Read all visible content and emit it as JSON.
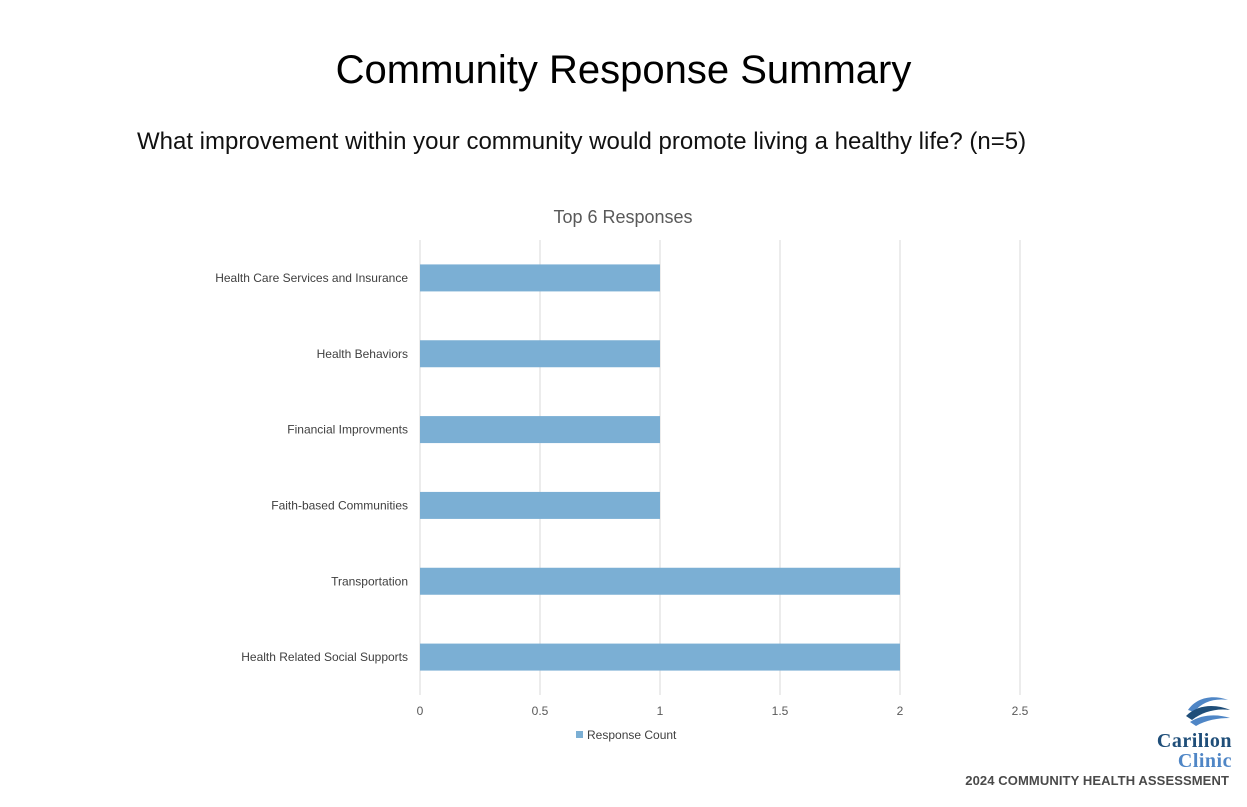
{
  "page": {
    "title": "Community Response Summary",
    "subtitle": "What improvement within your community would promote living a healthy life? (n=5)",
    "footer": "2024 COMMUNITY HEALTH ASSESSMENT",
    "logo": {
      "line1": "Carilion",
      "line2": "Clinic",
      "icon": "carilion-swoosh-icon"
    }
  },
  "colors": {
    "bar": "#7bafd4",
    "grid": "#d9d9d9"
  },
  "chart_data": {
    "type": "bar",
    "orientation": "horizontal",
    "title": "Top 6 Responses",
    "categories": [
      "Health Care Services and Insurance",
      "Health Behaviors",
      "Financial Improvments",
      "Faith-based Communities",
      "Transportation",
      "Health Related Social Supports"
    ],
    "series": [
      {
        "name": "Response Count",
        "values": [
          1,
          1,
          1,
          1,
          2,
          2
        ]
      }
    ],
    "xlim": [
      0,
      2.5
    ],
    "xticks": [
      "0",
      "0.5",
      "1",
      "1.5",
      "2",
      "2.5"
    ],
    "xlabel": "",
    "ylabel": "",
    "grid": true,
    "legend": "bottom"
  }
}
